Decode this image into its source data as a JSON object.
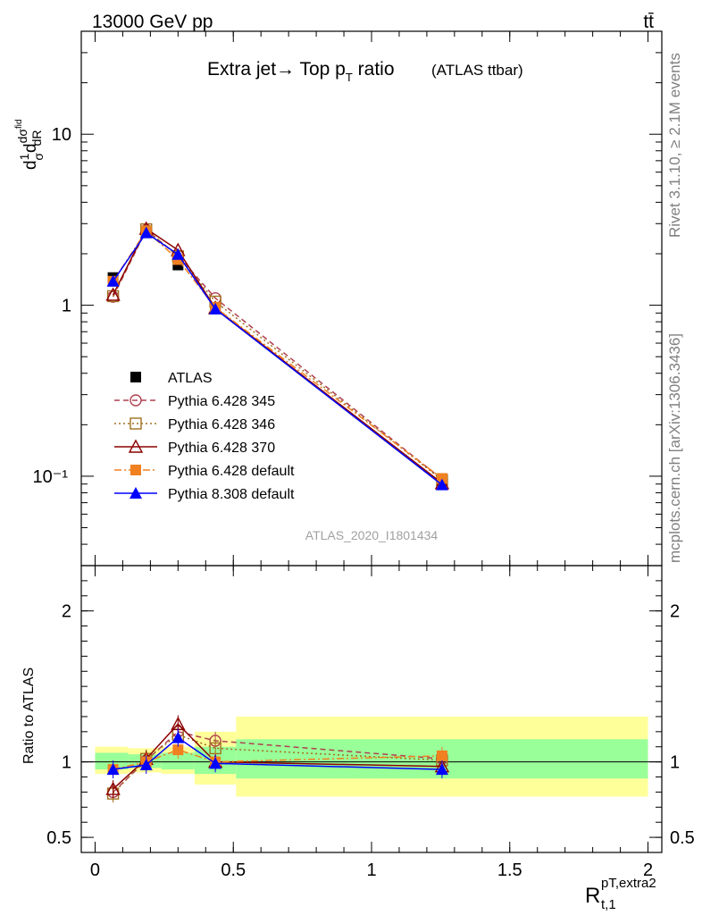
{
  "header": {
    "energy_label": "13000 GeV pp",
    "process_label": "tt̄"
  },
  "side_labels": {
    "rivet": "Rivet 3.1.10, ≥ 2.1M events",
    "mcplots": "mcplots.cern.ch [arXiv:1306.3436]"
  },
  "chart_data": [
    {
      "type": "scatter",
      "panel": "main",
      "title_main": "Extra jet→ Top p",
      "title_sub": "T",
      "title_tail": " ratio",
      "title_note": "(ATLAS ttbar)",
      "analysis_label": "ATLAS_2020_I1801434",
      "ylabel": "d(1/σ)dσ^fid/dR^pT,extra2_t,1",
      "yscale": "log",
      "ylim": [
        0.03,
        40
      ],
      "xlim": [
        -0.05,
        2.05
      ],
      "ytick_labels": [
        "10",
        "1",
        "10⁻¹"
      ],
      "legend_position": "middle-left",
      "series": [
        {
          "name": "ATLAS",
          "color": "#000000",
          "marker": "filled-square",
          "x": [
            0.065,
            0.185,
            0.3,
            0.435,
            1.255
          ],
          "y": [
            1.45,
            2.7,
            1.72,
            0.97,
            0.094
          ]
        },
        {
          "name": "Pythia 6.428 345",
          "color": "#b04050",
          "marker": "open-circle",
          "line": "dashed",
          "x": [
            0.065,
            0.185,
            0.3,
            0.435,
            1.255
          ],
          "y": [
            1.12,
            2.75,
            1.95,
            1.1,
            0.096
          ]
        },
        {
          "name": "Pythia 6.428 346",
          "color": "#a07020",
          "marker": "open-square",
          "line": "dotted",
          "x": [
            0.065,
            0.185,
            0.3,
            0.435,
            1.255
          ],
          "y": [
            1.13,
            2.78,
            1.93,
            1.05,
            0.095
          ]
        },
        {
          "name": "Pythia 6.428 370",
          "color": "#8b0000",
          "marker": "open-triangle",
          "line": "solid",
          "x": [
            0.065,
            0.185,
            0.3,
            0.435,
            1.255
          ],
          "y": [
            1.15,
            2.8,
            2.1,
            0.96,
            0.091
          ]
        },
        {
          "name": "Pythia 6.428 default",
          "color": "#f08020",
          "marker": "filled-square",
          "line": "dashdot",
          "x": [
            0.065,
            0.185,
            0.3,
            0.435,
            1.255
          ],
          "y": [
            1.38,
            2.72,
            1.85,
            0.97,
            0.097
          ]
        },
        {
          "name": "Pythia 8.308 default",
          "color": "#0000ff",
          "marker": "filled-triangle",
          "line": "solid",
          "x": [
            0.065,
            0.185,
            0.3,
            0.435,
            1.255
          ],
          "y": [
            1.38,
            2.65,
            1.98,
            0.95,
            0.089
          ]
        }
      ]
    },
    {
      "type": "scatter",
      "panel": "ratio",
      "ylabel": "Ratio to ATLAS",
      "xlabel": "R",
      "xlabel_sup": "pT,extra2",
      "xlabel_sub": "t,1",
      "ylim": [
        0.4,
        2.3
      ],
      "xlim": [
        -0.05,
        2.05
      ],
      "xtick_labels": [
        "0",
        "0.5",
        "1",
        "1.5",
        "2"
      ],
      "ytick_labels": [
        "0.5",
        "1",
        "2"
      ],
      "reference_line": 1,
      "uncertainty_bands": {
        "bin_edges": [
          0.0,
          0.12,
          0.24,
          0.36,
          0.51,
          2.0
        ],
        "green": [
          [
            0.95,
            1.06
          ],
          [
            0.96,
            1.05
          ],
          [
            0.95,
            1.06
          ],
          [
            0.92,
            1.1
          ],
          [
            0.89,
            1.15
          ]
        ],
        "yellow": [
          [
            0.92,
            1.1
          ],
          [
            0.93,
            1.09
          ],
          [
            0.92,
            1.1
          ],
          [
            0.85,
            1.2
          ],
          [
            0.77,
            1.3
          ]
        ]
      },
      "series": [
        {
          "name": "Pythia 6.428 345",
          "x": [
            0.065,
            0.185,
            0.3,
            0.435,
            1.255
          ],
          "y": [
            0.8,
            1.01,
            1.2,
            1.14,
            1.02
          ]
        },
        {
          "name": "Pythia 6.428 346",
          "x": [
            0.065,
            0.185,
            0.3,
            0.435,
            1.255
          ],
          "y": [
            0.79,
            1.02,
            1.18,
            1.09,
            1.01
          ]
        },
        {
          "name": "Pythia 6.428 370",
          "x": [
            0.065,
            0.185,
            0.3,
            0.435,
            1.255
          ],
          "y": [
            0.82,
            1.02,
            1.25,
            1.0,
            0.97
          ]
        },
        {
          "name": "Pythia 6.428 default",
          "x": [
            0.065,
            0.185,
            0.3,
            0.435,
            1.255
          ],
          "y": [
            0.95,
            1.0,
            1.08,
            1.0,
            1.04
          ]
        },
        {
          "name": "Pythia 8.308 default",
          "x": [
            0.065,
            0.185,
            0.3,
            0.435,
            1.255
          ],
          "y": [
            0.95,
            0.98,
            1.16,
            0.99,
            0.95
          ]
        }
      ]
    }
  ]
}
